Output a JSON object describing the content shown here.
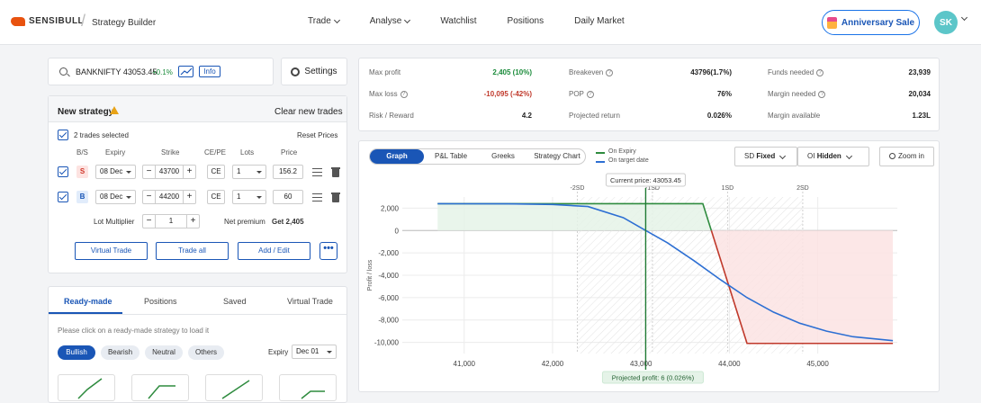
{
  "brand": {
    "name": "SENSIBULL",
    "app_title": "Strategy Builder"
  },
  "nav": {
    "items": [
      "Trade",
      "Analyse",
      "Watchlist",
      "Positions",
      "Daily Market"
    ],
    "has_dropdown": [
      true,
      true,
      false,
      false,
      false
    ]
  },
  "promo": {
    "label": "Anniversary Sale"
  },
  "user": {
    "initials": "SK"
  },
  "search": {
    "symbol": "BANKNIFTY 43053.45",
    "change": "+0.1%",
    "info_label": "Info"
  },
  "settings": {
    "label": "Settings"
  },
  "strategy": {
    "title": "New strategy",
    "clear_label": "Clear new trades",
    "selected_text": "2 trades selected",
    "reset_label": "Reset Prices",
    "columns": {
      "bs": "B/S",
      "expiry": "Expiry",
      "strike": "Strike",
      "cepe": "CE/PE",
      "lots": "Lots",
      "price": "Price"
    },
    "legs": [
      {
        "side": "S",
        "expiry": "08 Dec",
        "strike": "43700",
        "type": "CE",
        "lots": "1",
        "price": "156.2"
      },
      {
        "side": "B",
        "expiry": "08 Dec",
        "strike": "44200",
        "type": "CE",
        "lots": "1",
        "price": "60"
      }
    ],
    "lot_multiplier_label": "Lot Multiplier",
    "lot_multiplier": "1",
    "net_premium_label": "Net premium",
    "net_premium_value": "Get 2,405",
    "buttons": {
      "virtual": "Virtual Trade",
      "trade_all": "Trade all",
      "add_edit": "Add / Edit",
      "more": "•••"
    }
  },
  "readymade": {
    "tabs": [
      "Ready-made",
      "Positions",
      "Saved",
      "Virtual Trade"
    ],
    "hint": "Please click on a ready-made strategy to load it",
    "filters": [
      "Bullish",
      "Bearish",
      "Neutral",
      "Others"
    ],
    "expiry_label": "Expiry",
    "expiry_value": "Dec 01"
  },
  "stats": {
    "max_profit_label": "Max profit",
    "max_profit": "2,405 (10%)",
    "max_loss_label": "Max loss",
    "max_loss": "-10,095 (-42%)",
    "rr_label": "Risk / Reward",
    "rr": "4.2",
    "breakeven_label": "Breakeven",
    "breakeven": "43796(1.7%)",
    "pop_label": "POP",
    "pop": "76%",
    "proj_return_label": "Projected return",
    "proj_return": "0.026%",
    "funds_label": "Funds needed",
    "funds": "23,939",
    "margin_label": "Margin needed",
    "margin": "20,034",
    "margin_avail_label": "Margin available",
    "margin_avail": "1.23L",
    "colors": {
      "profit": "#1a8b3a",
      "loss": "#c0392b"
    }
  },
  "graph": {
    "tabs": [
      "Graph",
      "P&L Table",
      "Greeks",
      "Strategy Chart"
    ],
    "legend": [
      "On Expiry",
      "On target date"
    ],
    "sd_label": "SD",
    "sd_value": "Fixed",
    "oi_label": "OI",
    "oi_value": "Hidden",
    "zoom_label": "Zoom in",
    "current_price_label": "Current price: 43053.45",
    "projected_profit_label": "Projected profit: 6 (0.026%)",
    "ylabel": "Profit / loss"
  },
  "chart_data": {
    "type": "line",
    "ylabel": "Profit / loss",
    "x_ticks": [
      "41,000",
      "42,000",
      "43,000",
      "44,000",
      "45,000"
    ],
    "x_tick_values": [
      41000,
      42000,
      43000,
      44000,
      45000
    ],
    "y_ticks": [
      "2,000",
      "0",
      "-2,000",
      "-4,000",
      "-6,000",
      "-8,000",
      "-10,000"
    ],
    "y_tick_values": [
      2000,
      0,
      -2000,
      -4000,
      -6000,
      -8000,
      -10000
    ],
    "xlim": [
      40300,
      45900
    ],
    "ylim": [
      -11000,
      3000
    ],
    "sd_marks": [
      {
        "label": "-2SD",
        "x": 42280
      },
      {
        "label": "-1SD",
        "x": 43130
      },
      {
        "label": "1SD",
        "x": 43980
      },
      {
        "label": "2SD",
        "x": 44830
      }
    ],
    "current_price": 43053.45,
    "series": [
      {
        "name": "On Expiry",
        "color": "#2e8b3e",
        "x": [
          40700,
          43700,
          44200,
          45850
        ],
        "y": [
          2405,
          2405,
          -10095,
          -10095
        ]
      },
      {
        "name": "On target date",
        "color": "#2d6fd3",
        "x": [
          40700,
          41500,
          42000,
          42400,
          42800,
          43053,
          43300,
          43600,
          43900,
          44200,
          44500,
          44800,
          45100,
          45400,
          45850
        ],
        "y": [
          2400,
          2390,
          2330,
          2150,
          1150,
          6,
          -1100,
          -2700,
          -4400,
          -6000,
          -7300,
          -8300,
          -9000,
          -9500,
          -9850
        ]
      }
    ]
  }
}
